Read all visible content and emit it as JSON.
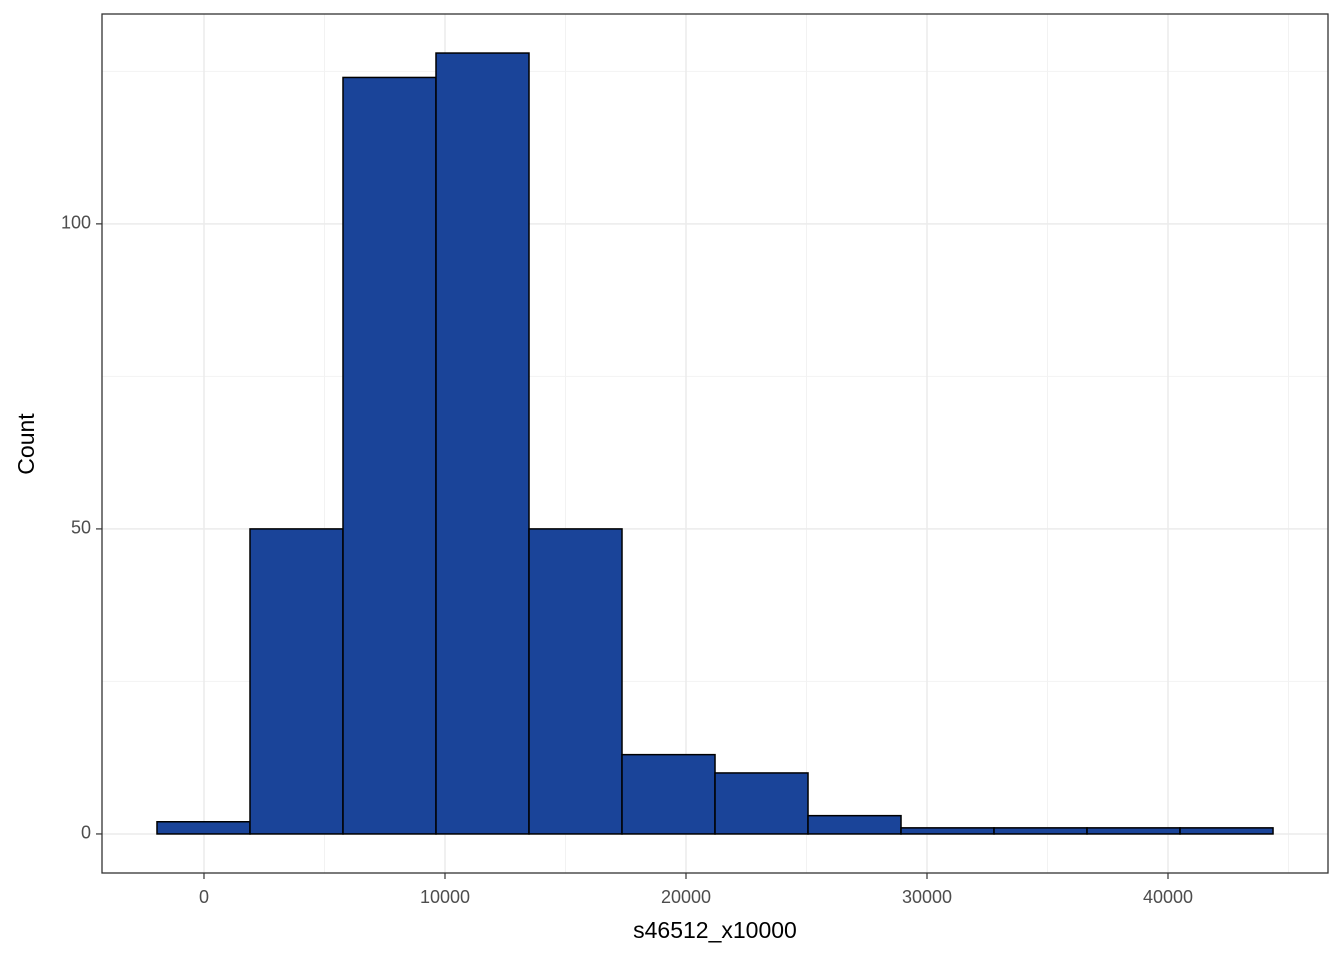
{
  "chart_data": {
    "type": "histogram",
    "x_label": "s46512_x10000",
    "y_label": "Count",
    "bins": [
      -1950,
      1909,
      5768,
      9627,
      13486,
      17345,
      21204,
      25063,
      28922,
      32781,
      36640,
      40499,
      44358
    ],
    "values": [
      2,
      50,
      124,
      128,
      50,
      13,
      10,
      3,
      1,
      1,
      1,
      1
    ],
    "color": "#1a4499",
    "edge_color": "#000000",
    "xlim": [
      -4232,
      46639
    ],
    "ylim": [
      -6.4,
      134.4
    ],
    "xticks": [
      0,
      10000,
      20000,
      30000,
      40000
    ],
    "yticks": [
      0,
      50,
      100
    ],
    "minor_xticks": [
      5000,
      15000,
      25000,
      35000,
      45000
    ],
    "minor_yticks": [
      25,
      75,
      125
    ],
    "grid": true
  }
}
